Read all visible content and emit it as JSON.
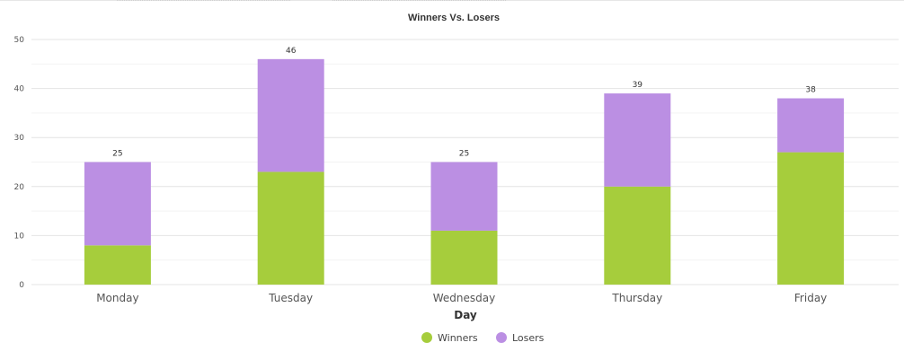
{
  "chart_data": {
    "type": "bar",
    "stacked": true,
    "title": "Winners Vs. Losers",
    "xlabel": "Day",
    "ylabel": "",
    "categories": [
      "Monday",
      "Tuesday",
      "Wednesday",
      "Thursday",
      "Friday"
    ],
    "series": [
      {
        "name": "Winners",
        "values": [
          8,
          23,
          11,
          20,
          27
        ],
        "color": "#a6cd3c"
      },
      {
        "name": "Losers",
        "values": [
          17,
          23,
          14,
          19,
          11
        ],
        "color": "#bb8fe3"
      }
    ],
    "totals": [
      25,
      46,
      25,
      39,
      38
    ],
    "ylim": [
      0,
      50
    ],
    "yticks": [
      0,
      10,
      20,
      30,
      40,
      50
    ],
    "grid": true,
    "legend": "bottom-center"
  }
}
